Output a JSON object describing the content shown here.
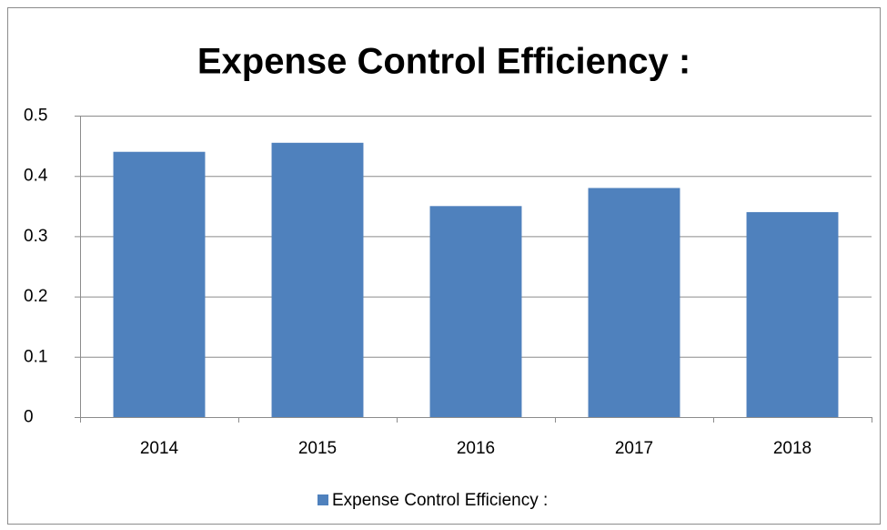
{
  "chart_data": {
    "type": "bar",
    "title": "Expense Control Efficiency :",
    "categories": [
      "2014",
      "2015",
      "2016",
      "2017",
      "2018"
    ],
    "series": [
      {
        "name": "Expense Control Efficiency :",
        "color": "#4f81bd",
        "values": [
          0.44,
          0.455,
          0.35,
          0.38,
          0.34
        ]
      }
    ],
    "ylim": [
      0,
      0.5
    ],
    "yticks": [
      0,
      0.1,
      0.2,
      0.3,
      0.4,
      0.5
    ],
    "grid": true
  }
}
